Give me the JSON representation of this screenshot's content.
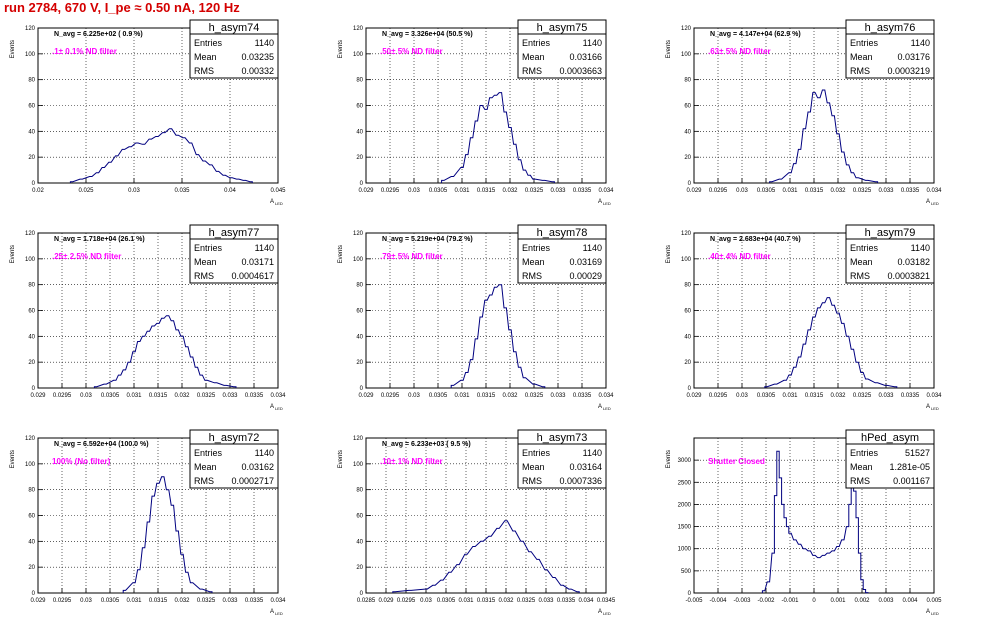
{
  "title": "run 2784,   670 V, I_pe ≈ 0.50 nA, 120 Hz",
  "y_axis_label": "Events",
  "x_axis_label": "A",
  "x_axis_label_sub": "LED",
  "stats_labels": [
    "Entries",
    "Mean",
    "RMS"
  ],
  "colors": {
    "histogram": "#000080",
    "annotation": "#ff00ff",
    "title": "#d40000",
    "grid": "#000000"
  },
  "chart_data": [
    {
      "type": "bar",
      "name": "h_asym74",
      "navg": "N_avg = 6.225e+02 ( 0.9 %)",
      "filter": ".1± 0.1% ND filter",
      "stats": {
        "Entries": "1140",
        "Mean": "0.03235",
        "RMS": "0.00332"
      },
      "xlim": [
        0.02,
        0.045
      ],
      "xticks": [
        "0.02",
        "0.025",
        "0.03",
        "0.035",
        "0.04",
        "0.045"
      ],
      "ylim": [
        0,
        120
      ],
      "yticks": [
        "0",
        "20",
        "40",
        "60",
        "80",
        "100",
        "120"
      ],
      "x": [
        0.0235,
        0.0245,
        0.0255,
        0.0262,
        0.0268,
        0.0275,
        0.0282,
        0.0289,
        0.0296,
        0.0303,
        0.031,
        0.0317,
        0.0324,
        0.0331,
        0.0338,
        0.0345,
        0.0352,
        0.0359,
        0.0366,
        0.0373,
        0.038,
        0.0387,
        0.0394,
        0.0401,
        0.0408,
        0.0415,
        0.0422
      ],
      "values": [
        1,
        3,
        5,
        8,
        12,
        16,
        21,
        26,
        28,
        31,
        30,
        34,
        36,
        39,
        42,
        37,
        35,
        31,
        22,
        17,
        14,
        9,
        6,
        4,
        3,
        2,
        1
      ]
    },
    {
      "type": "bar",
      "name": "h_asym75",
      "navg": "N_avg = 3.326e+04 (50.5 %)",
      "filter": ".50± 5% ND filter",
      "stats": {
        "Entries": "1140",
        "Mean": "0.03166",
        "RMS": "0.0003663"
      },
      "xlim": [
        0.029,
        0.034
      ],
      "xticks": [
        "0.029",
        "0.0295",
        "0.03",
        "0.0305",
        "0.031",
        "0.0315",
        "0.032",
        "0.0325",
        "0.033",
        "0.0335",
        "0.034"
      ],
      "ylim": [
        0,
        120
      ],
      "yticks": [
        "0",
        "20",
        "40",
        "60",
        "80",
        "100",
        "120"
      ],
      "x": [
        0.0306,
        0.0308,
        0.031,
        0.0311,
        0.0312,
        0.0313,
        0.0314,
        0.0315,
        0.0316,
        0.0317,
        0.0318,
        0.0319,
        0.032,
        0.0321,
        0.0322,
        0.0323,
        0.0324,
        0.0325,
        0.0327,
        0.0329
      ],
      "values": [
        2,
        5,
        12,
        22,
        35,
        48,
        60,
        57,
        66,
        68,
        70,
        55,
        43,
        30,
        18,
        10,
        6,
        3,
        2,
        1
      ]
    },
    {
      "type": "bar",
      "name": "h_asym76",
      "navg": "N_avg = 4.147e+04 (62.9 %)",
      "filter": ".63± 5% ND filter",
      "stats": {
        "Entries": "1140",
        "Mean": "0.03176",
        "RMS": "0.0003219"
      },
      "xlim": [
        0.029,
        0.034
      ],
      "xticks": [
        "0.029",
        "0.0295",
        "0.03",
        "0.0305",
        "0.031",
        "0.0315",
        "0.032",
        "0.0325",
        "0.033",
        "0.0335",
        "0.034"
      ],
      "ylim": [
        0,
        120
      ],
      "yticks": [
        "0",
        "20",
        "40",
        "60",
        "80",
        "100",
        "120"
      ],
      "x": [
        0.0306,
        0.0308,
        0.031,
        0.0311,
        0.0312,
        0.0313,
        0.0314,
        0.0315,
        0.0316,
        0.0317,
        0.0318,
        0.0319,
        0.032,
        0.0321,
        0.0322,
        0.0323,
        0.0324,
        0.0326,
        0.0328
      ],
      "values": [
        1,
        3,
        8,
        15,
        26,
        42,
        55,
        70,
        66,
        72,
        62,
        52,
        38,
        24,
        14,
        8,
        4,
        2,
        1
      ]
    },
    {
      "type": "bar",
      "name": "h_asym77",
      "navg": "N_avg = 1.718e+04 (26.1 %)",
      "filter": ".25± 2.5% ND filter",
      "stats": {
        "Entries": "1140",
        "Mean": "0.03171",
        "RMS": "0.0004617"
      },
      "xlim": [
        0.029,
        0.034
      ],
      "xticks": [
        "0.029",
        "0.0295",
        "0.03",
        "0.0305",
        "0.031",
        "0.0315",
        "0.032",
        "0.0325",
        "0.033",
        "0.0335",
        "0.034"
      ],
      "ylim": [
        0,
        120
      ],
      "yticks": [
        "0",
        "20",
        "40",
        "60",
        "80",
        "100",
        "120"
      ],
      "x": [
        0.0302,
        0.0304,
        0.0306,
        0.0307,
        0.0308,
        0.0309,
        0.031,
        0.0311,
        0.0312,
        0.0313,
        0.0314,
        0.0315,
        0.0316,
        0.0317,
        0.0318,
        0.0319,
        0.032,
        0.0321,
        0.0322,
        0.0323,
        0.0324,
        0.0325,
        0.0327,
        0.0329,
        0.0331
      ],
      "values": [
        1,
        3,
        6,
        10,
        14,
        20,
        28,
        36,
        40,
        44,
        48,
        50,
        54,
        56,
        52,
        45,
        40,
        32,
        24,
        16,
        10,
        6,
        4,
        2,
        1
      ]
    },
    {
      "type": "bar",
      "name": "h_asym78",
      "navg": "N_avg = 5.219e+04 (79.2 %)",
      "filter": ".79± 5% ND filter",
      "stats": {
        "Entries": "1140",
        "Mean": "0.03169",
        "RMS": "0.00029"
      },
      "xlim": [
        0.029,
        0.034
      ],
      "xticks": [
        "0.029",
        "0.0295",
        "0.03",
        "0.0305",
        "0.031",
        "0.0315",
        "0.032",
        "0.0325",
        "0.033",
        "0.0335",
        "0.034"
      ],
      "ylim": [
        0,
        120
      ],
      "yticks": [
        "0",
        "20",
        "40",
        "60",
        "80",
        "100",
        "120"
      ],
      "x": [
        0.0308,
        0.031,
        0.0311,
        0.0312,
        0.0313,
        0.0314,
        0.0315,
        0.0316,
        0.0317,
        0.0318,
        0.0319,
        0.032,
        0.0321,
        0.0322,
        0.0323,
        0.0325,
        0.0327
      ],
      "values": [
        2,
        6,
        12,
        22,
        38,
        55,
        68,
        72,
        78,
        80,
        62,
        45,
        28,
        16,
        8,
        3,
        1
      ]
    },
    {
      "type": "bar",
      "name": "h_asym79",
      "navg": "N_avg = 2.683e+04 (40.7 %)",
      "filter": ".40± 4% ND filter",
      "stats": {
        "Entries": "1140",
        "Mean": "0.03182",
        "RMS": "0.0003821"
      },
      "xlim": [
        0.029,
        0.034
      ],
      "xticks": [
        "0.029",
        "0.0295",
        "0.03",
        "0.0305",
        "0.031",
        "0.0315",
        "0.032",
        "0.0325",
        "0.033",
        "0.0335",
        "0.034"
      ],
      "ylim": [
        0,
        120
      ],
      "yticks": [
        "0",
        "20",
        "40",
        "60",
        "80",
        "100",
        "120"
      ],
      "x": [
        0.0305,
        0.0307,
        0.0309,
        0.031,
        0.0311,
        0.0312,
        0.0313,
        0.0314,
        0.0315,
        0.0316,
        0.0317,
        0.0318,
        0.0319,
        0.032,
        0.0321,
        0.0322,
        0.0323,
        0.0324,
        0.0325,
        0.0326,
        0.0328,
        0.033,
        0.0332
      ],
      "values": [
        1,
        3,
        6,
        10,
        16,
        24,
        34,
        45,
        55,
        62,
        66,
        70,
        64,
        58,
        50,
        40,
        30,
        20,
        12,
        7,
        4,
        2,
        1
      ]
    },
    {
      "type": "bar",
      "name": "h_asym72",
      "navg": "N_avg = 6.592e+04 (100.0 %)",
      "filter": "100% (No filter)",
      "stats": {
        "Entries": "1140",
        "Mean": "0.03162",
        "RMS": "0.0002717"
      },
      "xlim": [
        0.029,
        0.034
      ],
      "xticks": [
        "0.029",
        "0.0295",
        "0.03",
        "0.0305",
        "0.031",
        "0.0315",
        "0.032",
        "0.0325",
        "0.033",
        "0.0335",
        "0.034"
      ],
      "ylim": [
        0,
        120
      ],
      "yticks": [
        "0",
        "20",
        "40",
        "60",
        "80",
        "100",
        "120"
      ],
      "x": [
        0.0308,
        0.031,
        0.0311,
        0.0312,
        0.0313,
        0.0314,
        0.0315,
        0.0316,
        0.0317,
        0.0318,
        0.0319,
        0.032,
        0.0321,
        0.0322,
        0.0324,
        0.0326
      ],
      "values": [
        2,
        8,
        18,
        35,
        55,
        75,
        85,
        90,
        80,
        68,
        48,
        30,
        16,
        8,
        3,
        1
      ]
    },
    {
      "type": "bar",
      "name": "h_asym73",
      "navg": "N_avg = 6.233e+03 ( 9.5 %)",
      "filter": ".10± 1% ND filter",
      "stats": {
        "Entries": "1140",
        "Mean": "0.03164",
        "RMS": "0.0007336"
      },
      "xlim": [
        0.0285,
        0.0345
      ],
      "xticks": [
        "0.0285",
        "0.029",
        "0.0295",
        "0.03",
        "0.0305",
        "0.031",
        "0.0315",
        "0.032",
        "0.0325",
        "0.033",
        "0.0335",
        "0.034",
        "0.0345"
      ],
      "ylim": [
        0,
        120
      ],
      "yticks": [
        "0",
        "20",
        "40",
        "60",
        "80",
        "100",
        "120"
      ],
      "x": [
        0.0292,
        0.0296,
        0.03,
        0.0302,
        0.0304,
        0.0306,
        0.0308,
        0.031,
        0.0312,
        0.0314,
        0.0316,
        0.0318,
        0.032,
        0.0322,
        0.0324,
        0.0326,
        0.0328,
        0.033,
        0.0332,
        0.0334,
        0.0336,
        0.0338
      ],
      "values": [
        1,
        2,
        3,
        6,
        10,
        16,
        22,
        30,
        36,
        40,
        44,
        50,
        56,
        48,
        40,
        32,
        26,
        18,
        12,
        6,
        3,
        1
      ]
    },
    {
      "type": "bar",
      "name": "hPed_asym",
      "navg": "",
      "filter": "Shutter Closed",
      "stats": {
        "Entries": "51527",
        "Mean": "1.281e-05",
        "RMS": "0.001167"
      },
      "xlim": [
        -0.005,
        0.005
      ],
      "xticks": [
        "-0.005",
        "-0.004",
        "-0.003",
        "-0.002",
        "-0.001",
        "0",
        "0.001",
        "0.002",
        "0.003",
        "0.004",
        "0.005"
      ],
      "ylim": [
        0,
        3500
      ],
      "yticks": [
        "0",
        "500",
        "1000",
        "1500",
        "2000",
        "2500",
        "3000"
      ],
      "x": [
        -0.0021,
        -0.0019,
        -0.0017,
        -0.0016,
        -0.0015,
        -0.0014,
        -0.0013,
        -0.0012,
        -0.0011,
        -0.001,
        -0.0008,
        -0.0006,
        -0.0004,
        -0.0002,
        0.0,
        0.0002,
        0.0004,
        0.0006,
        0.0008,
        0.001,
        0.0012,
        0.0014,
        0.0015,
        0.0016,
        0.0017,
        0.0018,
        0.0019,
        0.002,
        0.0021,
        0.0022
      ],
      "values": [
        50,
        250,
        900,
        2200,
        3200,
        2600,
        2000,
        1700,
        1500,
        1350,
        1200,
        1100,
        1000,
        950,
        850,
        800,
        850,
        900,
        950,
        1050,
        1200,
        1500,
        2000,
        2400,
        2300,
        1700,
        900,
        300,
        80,
        10
      ]
    }
  ]
}
